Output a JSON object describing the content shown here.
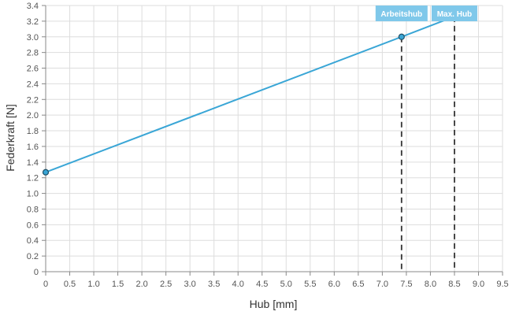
{
  "chart_data": {
    "type": "line",
    "title": "",
    "xlabel": "Hub [mm]",
    "ylabel": "Federkraft [N]",
    "xlim": [
      0,
      9.5
    ],
    "ylim": [
      0,
      3.4
    ],
    "x_ticks": [
      "0",
      "0.5",
      "1.0",
      "1.5",
      "2.0",
      "2.5",
      "3.0",
      "3.5",
      "4.0",
      "4.5",
      "5.0",
      "5.5",
      "6.0",
      "6.5",
      "7.0",
      "7.5",
      "8.0",
      "8.5",
      "9.0",
      "9.5"
    ],
    "y_ticks": [
      "0",
      "0.2",
      "0.4",
      "0.6",
      "0.8",
      "1.0",
      "1.2",
      "1.4",
      "1.6",
      "1.8",
      "2.0",
      "2.2",
      "2.4",
      "2.6",
      "2.8",
      "3.0",
      "3.2",
      "3.4"
    ],
    "grid": true,
    "series": [
      {
        "color": "#3aa6d6",
        "x": [
          0,
          7.4,
          8.5
        ],
        "y": [
          1.27,
          3.0,
          3.26
        ]
      }
    ],
    "annotations": [
      {
        "label": "Arbeitshub",
        "x": 7.4
      },
      {
        "label": "Max. Hub",
        "x": 8.5
      }
    ],
    "annotation_color": "#7fc8ea"
  }
}
